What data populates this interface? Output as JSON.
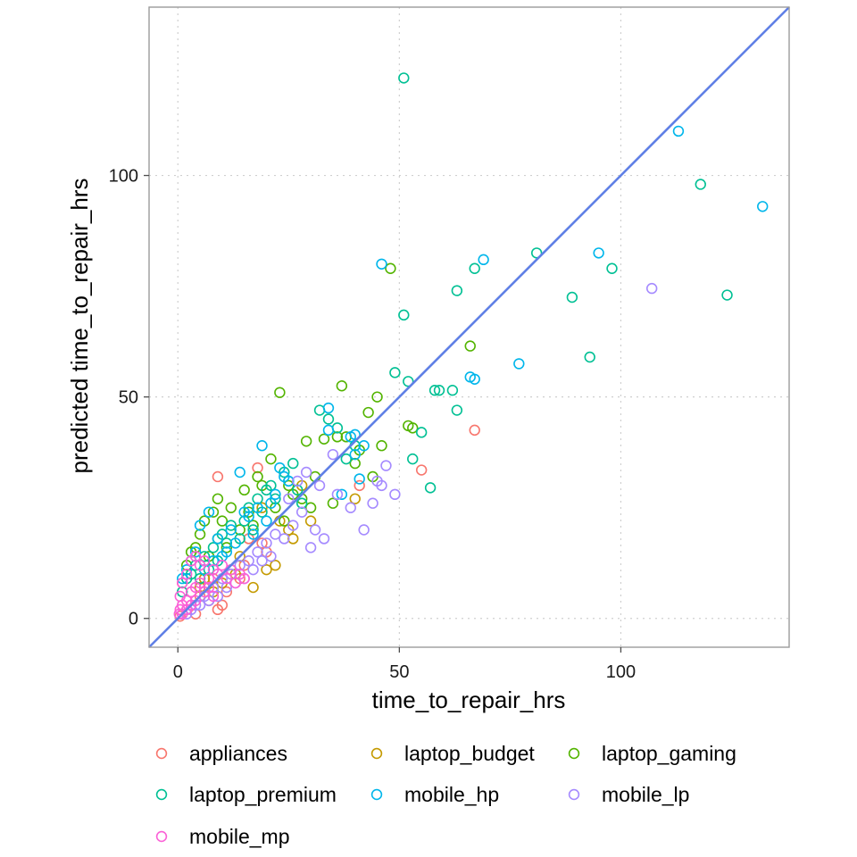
{
  "chart_data": {
    "type": "scatter",
    "xlabel": "time_to_repair_hrs",
    "ylabel": "predicted time_to_repair_hrs",
    "xlim": [
      -6.5,
      138
    ],
    "ylim": [
      -6.5,
      138
    ],
    "x_ticks": [
      0,
      50,
      100
    ],
    "y_ticks": [
      0,
      50,
      100
    ],
    "x_tick_labels": [
      "0",
      "50",
      "100"
    ],
    "y_tick_labels": [
      "0",
      "50",
      "100"
    ],
    "grid": true,
    "grid_style": "dotted",
    "legend_position": "bottom",
    "reference_line": {
      "slope": 1,
      "intercept": 0,
      "color": "#6080E6"
    },
    "marker": "hollow-circle",
    "series": [
      {
        "name": "appliances",
        "color": "#F8766D",
        "points": [
          [
            9,
            32
          ],
          [
            18,
            34
          ],
          [
            67,
            42.5
          ],
          [
            55,
            33.5
          ],
          [
            41,
            30
          ],
          [
            1,
            8
          ],
          [
            3,
            6
          ],
          [
            5,
            5
          ],
          [
            8,
            9
          ],
          [
            10,
            3
          ],
          [
            2,
            2
          ],
          [
            6,
            7
          ],
          [
            12,
            10
          ],
          [
            15,
            12
          ],
          [
            4,
            1
          ],
          [
            7,
            4
          ],
          [
            9,
            2
          ],
          [
            11,
            6
          ],
          [
            14,
            9
          ],
          [
            20,
            15
          ],
          [
            1,
            1
          ],
          [
            0.5,
            0.5
          ],
          [
            3,
            3
          ],
          [
            16,
            18
          ],
          [
            19,
            17
          ]
        ]
      },
      {
        "name": "laptop_budget",
        "color": "#C49A00",
        "points": [
          [
            13,
            10
          ],
          [
            17,
            7
          ],
          [
            25,
            20
          ],
          [
            30,
            22
          ],
          [
            40,
            27
          ],
          [
            22,
            12
          ],
          [
            10,
            8
          ],
          [
            8,
            6
          ],
          [
            19,
            25
          ],
          [
            23,
            22
          ],
          [
            28,
            30
          ],
          [
            14,
            14
          ],
          [
            5,
            7
          ],
          [
            26,
            18
          ],
          [
            20,
            11
          ],
          [
            6,
            9
          ],
          [
            12,
            11
          ]
        ]
      },
      {
        "name": "laptop_gaming",
        "color": "#53B400",
        "points": [
          [
            23,
            51
          ],
          [
            48,
            79
          ],
          [
            66,
            61.5
          ],
          [
            37,
            52.5
          ],
          [
            38,
            41
          ],
          [
            45,
            50
          ],
          [
            43,
            46.5
          ],
          [
            46,
            39
          ],
          [
            52,
            43.5
          ],
          [
            53,
            43
          ],
          [
            41,
            38
          ],
          [
            44,
            32
          ],
          [
            29,
            40
          ],
          [
            33,
            40.5
          ],
          [
            31,
            32
          ],
          [
            36,
            41
          ],
          [
            25,
            30
          ],
          [
            21,
            36
          ],
          [
            18,
            32
          ],
          [
            15,
            29
          ],
          [
            12,
            25
          ],
          [
            10,
            22
          ],
          [
            9,
            27
          ],
          [
            8,
            24
          ],
          [
            6,
            22
          ],
          [
            5,
            19
          ],
          [
            4,
            16
          ],
          [
            3,
            15
          ],
          [
            2,
            12
          ],
          [
            22,
            25
          ],
          [
            26,
            28
          ],
          [
            17,
            21
          ],
          [
            14,
            20
          ],
          [
            11,
            16
          ],
          [
            9,
            18
          ],
          [
            7,
            14
          ],
          [
            16,
            24
          ],
          [
            19,
            30
          ],
          [
            24,
            22
          ],
          [
            35,
            26
          ],
          [
            40,
            35
          ],
          [
            28,
            27
          ],
          [
            30,
            25
          ]
        ]
      },
      {
        "name": "laptop_premium",
        "color": "#00C094",
        "points": [
          [
            51,
            122
          ],
          [
            118,
            98
          ],
          [
            124,
            73
          ],
          [
            81,
            82.5
          ],
          [
            89,
            72.5
          ],
          [
            93,
            59
          ],
          [
            98,
            79
          ],
          [
            67,
            79
          ],
          [
            63,
            74
          ],
          [
            51,
            68.5
          ],
          [
            49,
            55.5
          ],
          [
            52,
            53.5
          ],
          [
            59,
            51.5
          ],
          [
            58,
            51.5
          ],
          [
            62,
            51.5
          ],
          [
            63,
            47
          ],
          [
            55,
            42
          ],
          [
            57,
            29.5
          ],
          [
            53,
            36
          ],
          [
            32,
            47
          ],
          [
            34,
            45
          ],
          [
            36,
            43
          ],
          [
            40,
            39
          ],
          [
            38,
            36
          ],
          [
            26,
            35
          ],
          [
            24,
            33
          ],
          [
            20,
            29
          ],
          [
            16,
            25
          ],
          [
            12,
            21
          ],
          [
            10,
            19
          ],
          [
            8,
            16
          ],
          [
            6,
            14
          ],
          [
            4,
            12
          ],
          [
            3,
            10
          ],
          [
            2,
            9
          ],
          [
            1,
            6
          ],
          [
            15,
            22
          ],
          [
            18,
            27
          ],
          [
            21,
            30
          ],
          [
            25,
            31
          ],
          [
            28,
            26
          ],
          [
            11,
            17
          ],
          [
            9,
            13
          ],
          [
            7,
            11
          ],
          [
            5,
            9
          ],
          [
            14,
            18
          ],
          [
            17,
            20
          ],
          [
            19,
            24
          ],
          [
            22,
            27
          ],
          [
            27,
            29
          ]
        ]
      },
      {
        "name": "mobile_hp",
        "color": "#00B6EB",
        "points": [
          [
            113,
            110
          ],
          [
            132,
            93
          ],
          [
            95,
            82.5
          ],
          [
            69,
            81
          ],
          [
            46,
            80
          ],
          [
            77,
            57.5
          ],
          [
            66,
            54.5
          ],
          [
            67,
            54
          ],
          [
            34,
            47.5
          ],
          [
            34,
            42.5
          ],
          [
            39,
            41
          ],
          [
            40,
            41.5
          ],
          [
            42,
            39
          ],
          [
            40,
            37
          ],
          [
            37,
            28
          ],
          [
            41,
            31.5
          ],
          [
            19,
            39
          ],
          [
            14,
            33
          ],
          [
            23,
            34
          ],
          [
            25,
            31
          ],
          [
            22,
            28
          ],
          [
            18,
            25
          ],
          [
            15,
            24
          ],
          [
            12,
            20
          ],
          [
            9,
            18
          ],
          [
            7,
            24
          ],
          [
            5,
            21
          ],
          [
            4,
            15
          ],
          [
            3,
            13
          ],
          [
            2,
            11
          ],
          [
            1,
            9
          ],
          [
            20,
            22
          ],
          [
            17,
            19
          ],
          [
            13,
            17
          ],
          [
            11,
            15
          ],
          [
            8,
            13
          ],
          [
            6,
            11
          ],
          [
            10,
            14
          ],
          [
            16,
            23
          ],
          [
            21,
            26
          ],
          [
            24,
            32
          ]
        ]
      },
      {
        "name": "mobile_lp",
        "color": "#A58AFF",
        "points": [
          [
            107,
            74.5
          ],
          [
            42,
            20
          ],
          [
            47,
            34.5
          ],
          [
            46,
            30
          ],
          [
            45,
            31
          ],
          [
            49,
            28
          ],
          [
            44,
            26
          ],
          [
            39,
            25
          ],
          [
            36,
            28
          ],
          [
            33,
            18
          ],
          [
            31,
            20
          ],
          [
            29,
            33
          ],
          [
            27,
            31
          ],
          [
            25,
            27
          ],
          [
            30,
            16
          ],
          [
            35,
            37
          ],
          [
            32,
            30
          ],
          [
            22,
            19
          ],
          [
            20,
            17
          ],
          [
            18,
            15
          ],
          [
            16,
            13
          ],
          [
            14,
            12
          ],
          [
            12,
            10
          ],
          [
            10,
            9
          ],
          [
            8,
            7
          ],
          [
            6,
            5
          ],
          [
            4,
            3
          ],
          [
            3,
            2
          ],
          [
            2,
            1
          ],
          [
            26,
            21
          ],
          [
            28,
            24
          ],
          [
            24,
            18
          ],
          [
            21,
            14
          ],
          [
            19,
            13
          ],
          [
            17,
            11
          ],
          [
            15,
            9
          ],
          [
            13,
            8
          ],
          [
            11,
            7
          ],
          [
            9,
            5
          ],
          [
            7,
            4
          ],
          [
            5,
            3
          ],
          [
            1,
            1
          ]
        ]
      },
      {
        "name": "mobile_mp",
        "color": "#FB61D7",
        "points": [
          [
            3,
            13
          ],
          [
            4,
            14
          ],
          [
            2,
            10
          ],
          [
            1,
            8
          ],
          [
            0.5,
            5
          ],
          [
            5,
            12
          ],
          [
            6,
            13
          ],
          [
            7,
            9
          ],
          [
            8,
            11
          ],
          [
            9,
            10
          ],
          [
            10,
            12
          ],
          [
            11,
            9
          ],
          [
            12,
            11
          ],
          [
            13,
            8
          ],
          [
            14,
            10
          ],
          [
            15,
            9
          ],
          [
            1,
            3
          ],
          [
            2,
            4
          ],
          [
            3,
            6
          ],
          [
            4,
            7
          ],
          [
            5,
            8
          ],
          [
            6,
            6
          ],
          [
            7,
            7
          ],
          [
            8,
            5
          ],
          [
            0.5,
            2
          ],
          [
            1,
            1
          ],
          [
            2,
            2
          ],
          [
            3,
            3
          ],
          [
            4,
            4
          ],
          [
            0.3,
            1
          ]
        ]
      }
    ]
  }
}
